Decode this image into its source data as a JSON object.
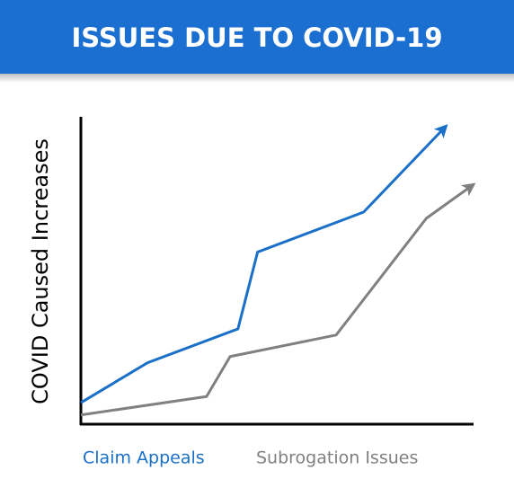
{
  "chart_data": {
    "type": "line",
    "title": "ISSUES DUE TO COVID-19",
    "y_label": "COVID Caused Increases",
    "xlim": [
      0,
      100
    ],
    "ylim": [
      0,
      100
    ],
    "series": [
      {
        "name": "Claim Appeals",
        "color": "#1a6fc8",
        "x": [
          0,
          17,
          40,
          45,
          72,
          93
        ],
        "values": [
          7,
          20,
          31,
          56,
          69,
          97
        ]
      },
      {
        "name": "Subrogation Issues",
        "color": "#808080",
        "x": [
          0,
          32,
          38,
          65,
          88,
          100
        ],
        "values": [
          3,
          9,
          22,
          29,
          67,
          78
        ]
      }
    ]
  }
}
